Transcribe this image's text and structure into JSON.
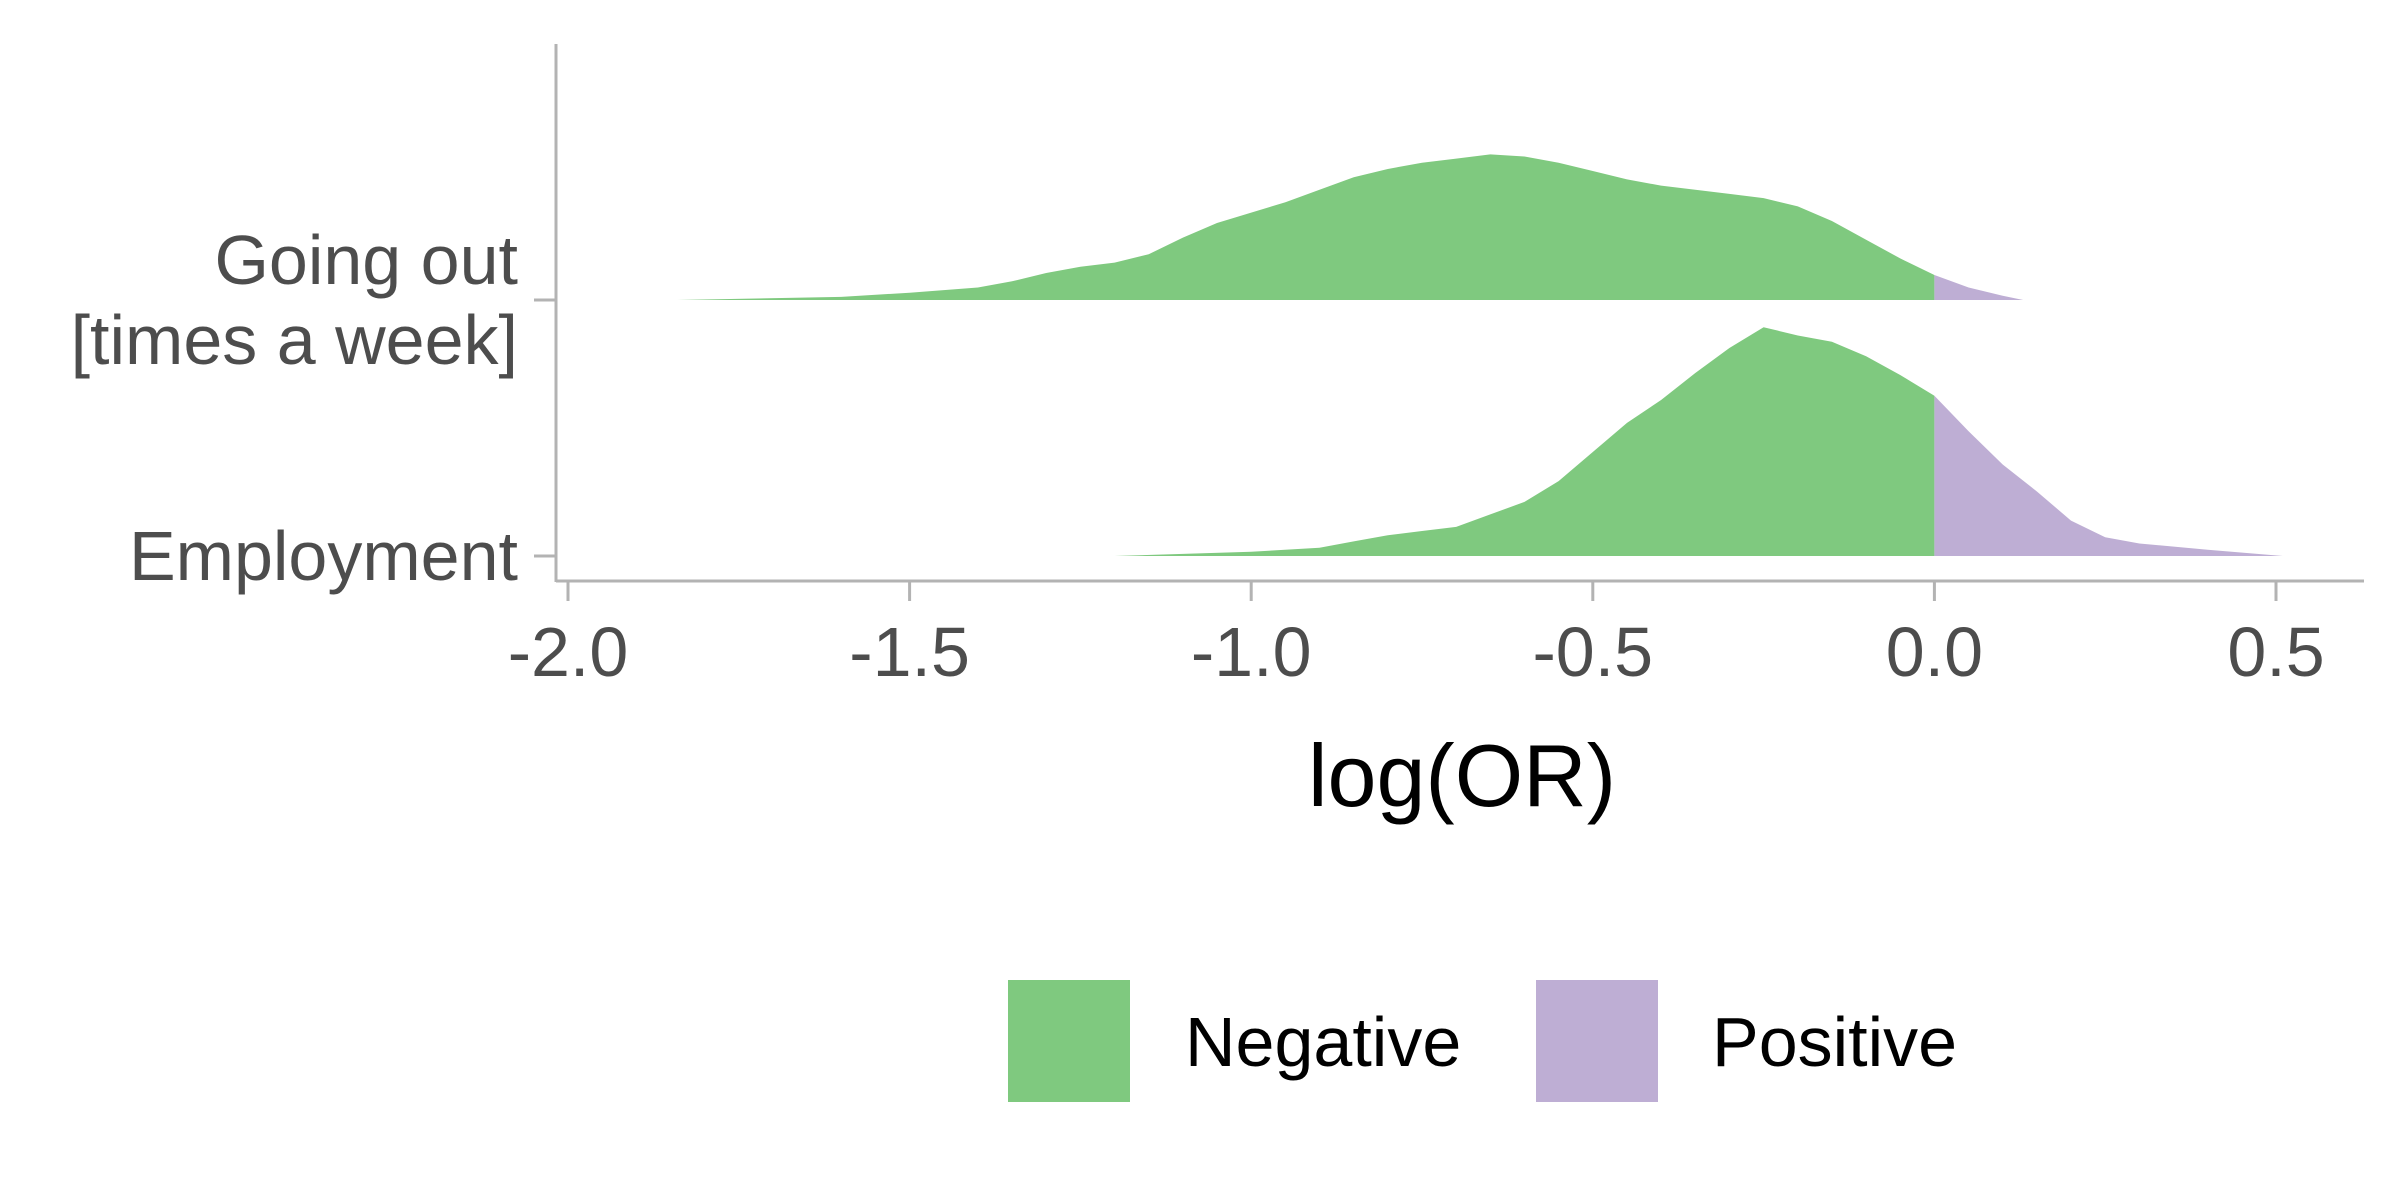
{
  "chart_data": {
    "type": "area",
    "subtype": "ridgeline",
    "xlabel": "log(OR)",
    "ylabel": "",
    "xlim": [
      -2.0,
      0.5
    ],
    "xticks": [
      "-2.0",
      "-1.5",
      "-1.0",
      "-0.5",
      "0.0",
      "0.5"
    ],
    "xtick_values": [
      -2.0,
      -1.5,
      -1.0,
      -0.5,
      0.0,
      0.5
    ],
    "fill_split_at": 0.0,
    "categories": [
      {
        "label_lines": [
          "Going out",
          "[times a week]"
        ]
      },
      {
        "label_lines": [
          "Employment"
        ]
      }
    ],
    "series": [
      {
        "category": "Going out [times a week]",
        "x": [
          -1.84,
          -1.6,
          -1.5,
          -1.4,
          -1.35,
          -1.3,
          -1.25,
          -1.2,
          -1.15,
          -1.1,
          -1.05,
          -1.0,
          -0.95,
          -0.9,
          -0.85,
          -0.8,
          -0.75,
          -0.7,
          -0.65,
          -0.6,
          -0.55,
          -0.5,
          -0.45,
          -0.4,
          -0.35,
          -0.3,
          -0.25,
          -0.2,
          -0.15,
          -0.1,
          -0.05,
          0.0,
          0.05,
          0.1,
          0.13
        ],
        "density": [
          0.0,
          0.015,
          0.035,
          0.06,
          0.09,
          0.13,
          0.16,
          0.18,
          0.22,
          0.3,
          0.37,
          0.42,
          0.47,
          0.53,
          0.59,
          0.63,
          0.66,
          0.68,
          0.7,
          0.69,
          0.66,
          0.62,
          0.58,
          0.55,
          0.53,
          0.51,
          0.49,
          0.45,
          0.38,
          0.29,
          0.2,
          0.12,
          0.06,
          0.02,
          0.0
        ]
      },
      {
        "category": "Employment",
        "x": [
          -1.2,
          -1.0,
          -0.9,
          -0.85,
          -0.8,
          -0.75,
          -0.7,
          -0.65,
          -0.6,
          -0.55,
          -0.5,
          -0.45,
          -0.4,
          -0.35,
          -0.3,
          -0.25,
          -0.2,
          -0.15,
          -0.1,
          -0.05,
          0.0,
          0.05,
          0.1,
          0.15,
          0.2,
          0.25,
          0.3,
          0.4,
          0.51
        ],
        "density": [
          0.0,
          0.02,
          0.04,
          0.07,
          0.1,
          0.12,
          0.14,
          0.2,
          0.26,
          0.36,
          0.5,
          0.64,
          0.75,
          0.88,
          1.0,
          1.1,
          1.06,
          1.03,
          0.96,
          0.87,
          0.77,
          0.6,
          0.44,
          0.31,
          0.17,
          0.09,
          0.06,
          0.03,
          0.0
        ]
      }
    ],
    "legend": {
      "placement": "bottom",
      "items": [
        {
          "label": "Negative",
          "color": "#7fc97f"
        },
        {
          "label": "Positive",
          "color": "#beaed4"
        }
      ]
    },
    "colors": {
      "negative": "#7fc97f",
      "positive": "#beaed4",
      "axis": "#b3b3b3",
      "tick_text": "#4d4d4d"
    },
    "grid": false
  }
}
